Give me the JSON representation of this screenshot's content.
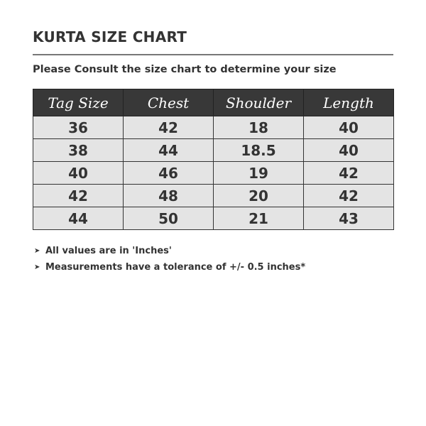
{
  "title": "KURTA SIZE CHART",
  "subtitle": "Please Consult the size chart to determine your size",
  "table": {
    "headers": [
      "Tag Size",
      "Chest",
      "Shoulder",
      "Length"
    ],
    "rows": [
      [
        "36",
        "42",
        "18",
        "40"
      ],
      [
        "38",
        "44",
        "18.5",
        "40"
      ],
      [
        "40",
        "46",
        "19",
        "42"
      ],
      [
        "42",
        "48",
        "20",
        "42"
      ],
      [
        "44",
        "50",
        "21",
        "43"
      ]
    ]
  },
  "notes": [
    "All values are in 'Inches'",
    "Measurements have a tolerance of +/- 0.5 inches*"
  ],
  "colors": {
    "header_bg": "#383838",
    "cell_bg": "#e4e4e4",
    "text": "#333333"
  }
}
